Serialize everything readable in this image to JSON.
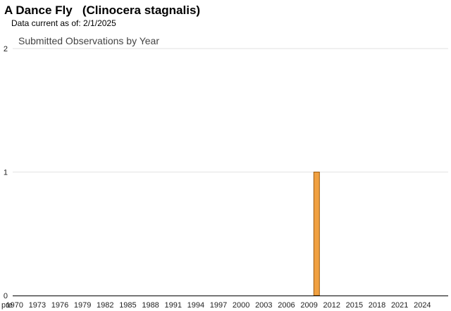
{
  "header": {
    "title": "A Dance Fly   (Clinocera stagnalis)",
    "data_current": "Data current as of: 2/1/2025"
  },
  "chart_data": {
    "type": "bar",
    "title": "Submitted Observations by Year",
    "xlabel": "",
    "ylabel": "",
    "ylim": [
      0,
      2
    ],
    "yticks": [
      0,
      1,
      2
    ],
    "grid": true,
    "categories": [
      "pre",
      "1970",
      "1971",
      "1972",
      "1973",
      "1974",
      "1975",
      "1976",
      "1977",
      "1978",
      "1979",
      "1980",
      "1981",
      "1982",
      "1983",
      "1984",
      "1985",
      "1986",
      "1987",
      "1988",
      "1989",
      "1990",
      "1991",
      "1992",
      "1993",
      "1994",
      "1995",
      "1996",
      "1997",
      "1998",
      "1999",
      "2000",
      "2001",
      "2002",
      "2003",
      "2004",
      "2005",
      "2006",
      "2007",
      "2008",
      "2009",
      "2010",
      "2011",
      "2012",
      "2013",
      "2014",
      "2015",
      "2016",
      "2017",
      "2018",
      "2019",
      "2020",
      "2021",
      "2022",
      "2023",
      "2024",
      "2025"
    ],
    "x_tick_labels": [
      "pre",
      "1970",
      "1973",
      "1976",
      "1979",
      "1982",
      "1985",
      "1988",
      "1991",
      "1994",
      "1997",
      "2000",
      "2003",
      "2006",
      "2009",
      "2012",
      "2015",
      "2018",
      "2021",
      "2024"
    ],
    "values": [
      0,
      0,
      0,
      0,
      0,
      0,
      0,
      0,
      0,
      0,
      0,
      0,
      0,
      0,
      0,
      0,
      0,
      0,
      0,
      0,
      0,
      0,
      0,
      0,
      0,
      0,
      0,
      0,
      0,
      0,
      0,
      0,
      0,
      0,
      0,
      0,
      0,
      0,
      0,
      0,
      0,
      1,
      0,
      0,
      0,
      0,
      0,
      0,
      0,
      0,
      0,
      0,
      0,
      0,
      0,
      0,
      0
    ],
    "bar_color": "#f0a040",
    "bar_border_color": "#9a5a10"
  }
}
